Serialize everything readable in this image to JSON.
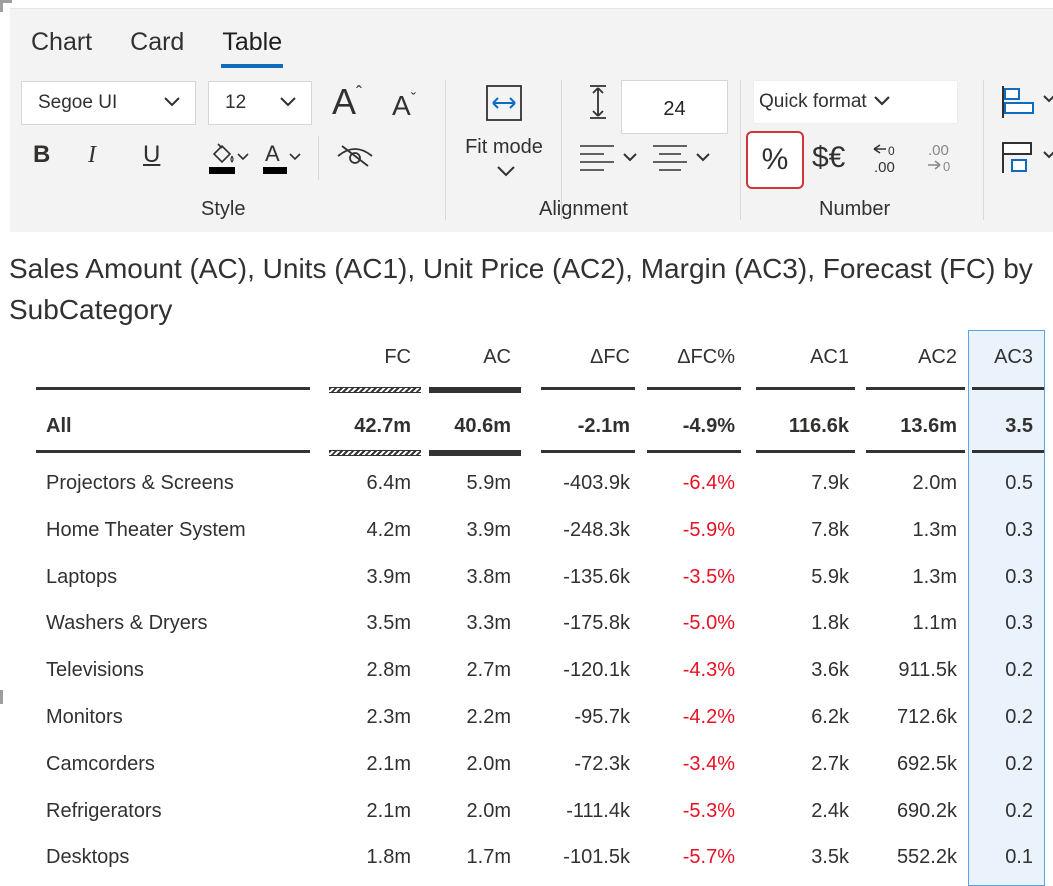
{
  "tabs": [
    {
      "label": "Chart",
      "active": false
    },
    {
      "label": "Card",
      "active": false
    },
    {
      "label": "Table",
      "active": true
    }
  ],
  "style_group": {
    "label": "Style",
    "font_family": "Segoe UI",
    "font_size": "12",
    "icons": [
      "increase-font-icon",
      "decrease-font-icon",
      "bold-icon",
      "italic-icon",
      "underline-icon",
      "fill-color-icon",
      "font-color-icon",
      "hide-icon"
    ],
    "bold_label": "B",
    "italic_label": "I",
    "underline_label": "U",
    "font_color_label": "A",
    "grow_label": "A",
    "shrink_label": "A"
  },
  "alignment_group": {
    "label": "Alignment",
    "fit_mode_label": "Fit mode",
    "row_height": "24"
  },
  "number_group": {
    "label": "Number",
    "quick_format_label": "Quick format",
    "percent_label": "%",
    "currency_label": "$€",
    "increase_decimals_label": ".00",
    "decrease_decimals_label": ".00",
    "accent_color": "#d13438"
  },
  "title": "Sales Amount (AC), Units (AC1), Unit Price (AC2), Margin (AC3), Forecast (FC) by SubCategory",
  "table": {
    "headers": [
      "FC",
      "AC",
      "ΔFC",
      "ΔFC%",
      "AC1",
      "AC2",
      "AC3"
    ],
    "total": {
      "name": "All",
      "values": [
        "42.7m",
        "40.6m",
        "-2.1m",
        "-4.9%",
        "116.6k",
        "13.6m",
        "3.5"
      ]
    },
    "rows": [
      {
        "name": "Projectors & Screens",
        "values": [
          "6.4m",
          "5.9m",
          "-403.9k",
          "-6.4%",
          "7.9k",
          "2.0m",
          "0.5"
        ]
      },
      {
        "name": "Home Theater System",
        "values": [
          "4.2m",
          "3.9m",
          "-248.3k",
          "-5.9%",
          "7.8k",
          "1.3m",
          "0.3"
        ]
      },
      {
        "name": "Laptops",
        "values": [
          "3.9m",
          "3.8m",
          "-135.6k",
          "-3.5%",
          "5.9k",
          "1.3m",
          "0.3"
        ]
      },
      {
        "name": "Washers & Dryers",
        "values": [
          "3.5m",
          "3.3m",
          "-175.8k",
          "-5.0%",
          "1.8k",
          "1.1m",
          "0.3"
        ]
      },
      {
        "name": "Televisions",
        "values": [
          "2.8m",
          "2.7m",
          "-120.1k",
          "-4.3%",
          "3.6k",
          "911.5k",
          "0.2"
        ]
      },
      {
        "name": "Monitors",
        "values": [
          "2.3m",
          "2.2m",
          "-95.7k",
          "-4.2%",
          "6.2k",
          "712.6k",
          "0.2"
        ]
      },
      {
        "name": "Camcorders",
        "values": [
          "2.1m",
          "2.0m",
          "-72.3k",
          "-3.4%",
          "2.7k",
          "692.5k",
          "0.2"
        ]
      },
      {
        "name": "Refrigerators",
        "values": [
          "2.1m",
          "2.0m",
          "-111.4k",
          "-5.3%",
          "2.4k",
          "690.2k",
          "0.2"
        ]
      },
      {
        "name": "Desktops",
        "values": [
          "1.8m",
          "1.7m",
          "-101.5k",
          "-5.7%",
          "3.5k",
          "552.2k",
          "0.1"
        ]
      }
    ],
    "negative_color": "#e81123",
    "selected_column": "AC3"
  }
}
